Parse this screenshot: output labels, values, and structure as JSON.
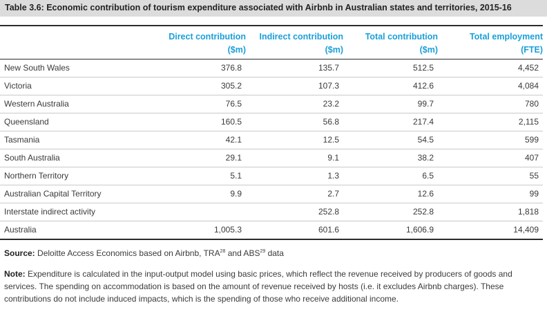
{
  "title": "Table 3.6: Economic contribution of tourism expenditure associated with Airbnb in Australian states and territories, 2015-16",
  "headers": {
    "direct_line1": "Direct contribution",
    "direct_line2": "($m)",
    "indirect_line1": "Indirect contribution",
    "indirect_line2": "($m)",
    "total_line1": "Total contribution",
    "total_line2": "($m)",
    "employment_line1": "Total employment",
    "employment_line2": "(FTE)"
  },
  "rows": [
    {
      "region": "New South Wales",
      "direct": "376.8",
      "indirect": "135.7",
      "total": "512.5",
      "employment": "4,452"
    },
    {
      "region": "Victoria",
      "direct": "305.2",
      "indirect": "107.3",
      "total": "412.6",
      "employment": "4,084"
    },
    {
      "region": "Western Australia",
      "direct": "76.5",
      "indirect": "23.2",
      "total": "99.7",
      "employment": "780"
    },
    {
      "region": "Queensland",
      "direct": "160.5",
      "indirect": "56.8",
      "total": "217.4",
      "employment": "2,115"
    },
    {
      "region": "Tasmania",
      "direct": "42.1",
      "indirect": "12.5",
      "total": "54.5",
      "employment": "599"
    },
    {
      "region": "South Australia",
      "direct": "29.1",
      "indirect": "9.1",
      "total": "38.2",
      "employment": "407"
    },
    {
      "region": "Northern Territory",
      "direct": "5.1",
      "indirect": "1.3",
      "total": "6.5",
      "employment": "55"
    },
    {
      "region": "Australian Capital Territory",
      "direct": "9.9",
      "indirect": "2.7",
      "total": "12.6",
      "employment": "99"
    },
    {
      "region": "Interstate indirect activity",
      "direct": "",
      "indirect": "252.8",
      "total": "252.8",
      "employment": "1,818"
    },
    {
      "region": "Australia",
      "direct": "1,005.3",
      "indirect": "601.6",
      "total": "1,606.9",
      "employment": "14,409"
    }
  ],
  "source": {
    "label": "Source:",
    "text_a": " Deloitte Access Economics based on Airbnb, TRA",
    "sup_a": "28",
    "text_b": " and ABS",
    "sup_b": "29",
    "text_c": " data"
  },
  "note": {
    "label": "Note:",
    "text": " Expenditure is calculated in the input-output model using basic prices, which reflect the revenue received by producers of goods and services. The spending on accommodation is based on the amount of revenue received by hosts (i.e. it excludes Airbnb charges). These contributions do not include induced impacts, which is the spending of those who receive additional income."
  }
}
